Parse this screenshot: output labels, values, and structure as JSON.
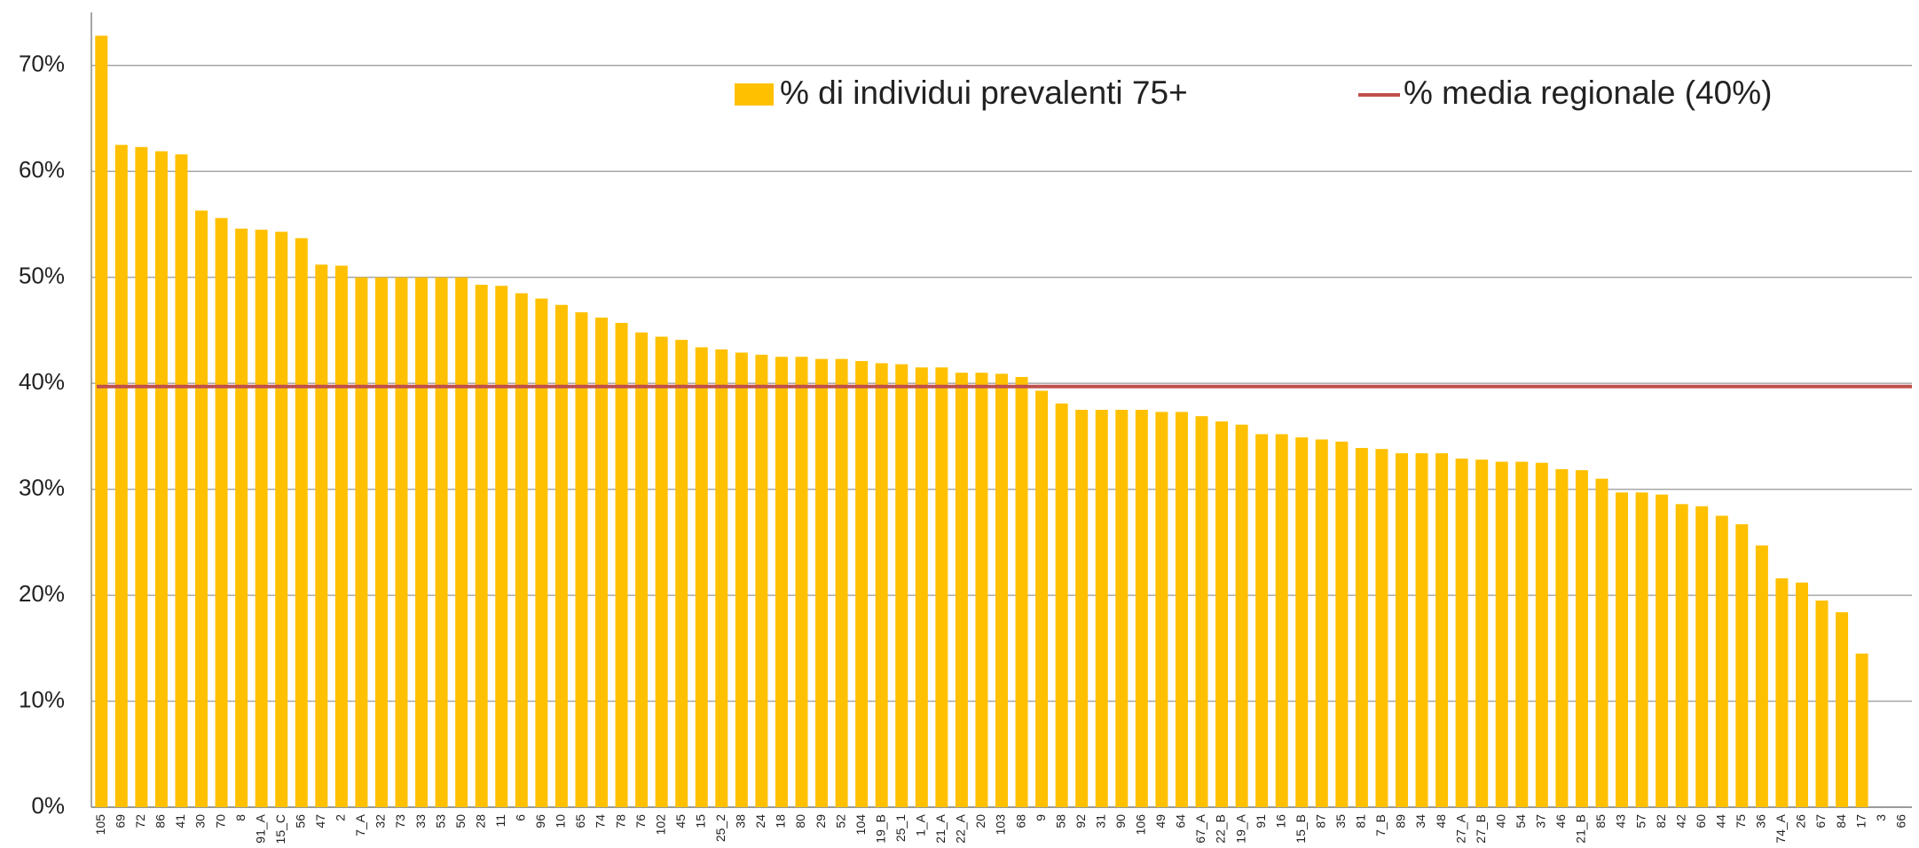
{
  "chart_data": {
    "type": "bar",
    "categories": [
      "105",
      "69",
      "72",
      "86",
      "41",
      "30",
      "70",
      "8",
      "91_A",
      "15_C",
      "56",
      "47",
      "2",
      "7_A",
      "32",
      "73",
      "33",
      "53",
      "50",
      "28",
      "11",
      "6",
      "96",
      "10",
      "65",
      "74",
      "78",
      "76",
      "102",
      "45",
      "15",
      "25_2",
      "38",
      "24",
      "18",
      "80",
      "29",
      "52",
      "104",
      "19_B",
      "25_1",
      "1_A",
      "21_A",
      "22_A",
      "20",
      "103",
      "68",
      "9",
      "58",
      "92",
      "31",
      "90",
      "106",
      "49",
      "64",
      "67_A",
      "22_B",
      "19_A",
      "91",
      "16",
      "15_B",
      "87",
      "35",
      "81",
      "7_B",
      "89",
      "34",
      "48",
      "27_A",
      "27_B",
      "40",
      "54",
      "37",
      "46",
      "21_B",
      "85",
      "43",
      "57",
      "82",
      "42",
      "60",
      "44",
      "75",
      "36",
      "74_A",
      "26",
      "67",
      "84",
      "17",
      "3",
      "66"
    ],
    "series": [
      {
        "name": "% di individui prevalenti 75+",
        "color": "#ffc000",
        "values": [
          72.8,
          62.5,
          62.3,
          61.9,
          61.6,
          56.3,
          55.6,
          54.6,
          54.5,
          54.3,
          53.7,
          51.2,
          51.1,
          50,
          50,
          50,
          50,
          50,
          50,
          49.3,
          49.2,
          48.5,
          48.0,
          47.4,
          46.7,
          46.2,
          45.7,
          44.8,
          44.4,
          44.1,
          43.4,
          43.2,
          42.9,
          42.7,
          42.5,
          42.5,
          42.3,
          42.3,
          42.1,
          41.9,
          41.8,
          41.5,
          41.5,
          41.0,
          41.0,
          40.9,
          40.6,
          39.3,
          38.1,
          37.5,
          37.5,
          37.5,
          37.5,
          37.3,
          37.3,
          36.9,
          36.4,
          36.1,
          35.2,
          35.2,
          34.9,
          34.7,
          34.5,
          33.9,
          33.8,
          33.4,
          33.4,
          33.4,
          32.9,
          32.8,
          32.6,
          32.6,
          32.5,
          31.9,
          31.8,
          31.0,
          29.7,
          29.7,
          29.5,
          28.6,
          28.4,
          27.5,
          26.7,
          24.7,
          21.6,
          21.2,
          19.5,
          18.4,
          14.5,
          0,
          0
        ]
      }
    ],
    "reference_line": {
      "name": "% media regionale (40%)",
      "color": "#c0504d",
      "value": 39.7
    },
    "ylim": [
      0,
      75
    ],
    "yticks": [
      {
        "value": 0,
        "label": "0%"
      },
      {
        "value": 10,
        "label": "10%"
      },
      {
        "value": 20,
        "label": "20%"
      },
      {
        "value": 30,
        "label": "30%"
      },
      {
        "value": 40,
        "label": "40%"
      },
      {
        "value": 50,
        "label": "50%"
      },
      {
        "value": 60,
        "label": "60%"
      },
      {
        "value": 70,
        "label": "70%"
      }
    ],
    "grid": true
  }
}
